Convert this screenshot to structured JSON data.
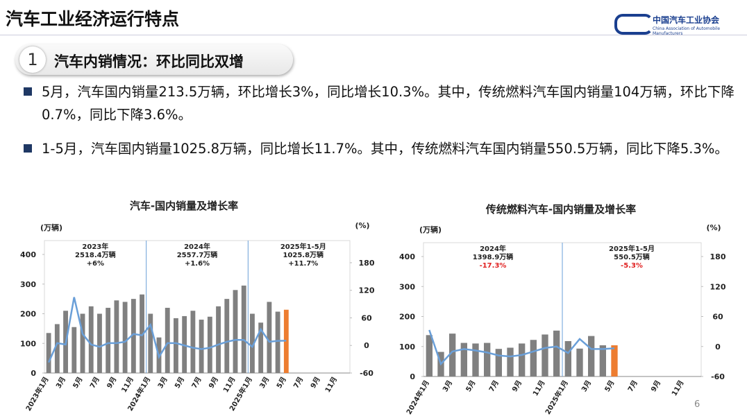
{
  "header": {
    "title": "汽车工业经济运行特点",
    "logo": "中国汽车工业协会",
    "logo_en": "China Association of Automobile Manufacturers"
  },
  "section": {
    "number": "1",
    "title": "汽车内销情况：环比同比双增"
  },
  "bullets": [
    "5月，汽车国内销量213.5万辆，环比增长3%，同比增长10.3%。其中，传统燃料汽车国内销量104万辆，环比下降0.7%，同比下降3.6%。",
    "1-5月，汽车国内销量1025.8万辆，同比增长11.7%。其中，传统燃料汽车国内销量550.5万辆，同比下降5.3%。"
  ],
  "page_number": "6",
  "chart_data": [
    {
      "type": "bar-line",
      "title": "汽车-国内销量及增长率",
      "y_label": "(万辆)",
      "y2_label": "(%)",
      "categories": [
        "2023年1月",
        null,
        "3月",
        null,
        "5月",
        null,
        "7月",
        null,
        "9月",
        null,
        "11月",
        null,
        "2024年1月",
        null,
        "3月",
        null,
        "5月",
        null,
        "7月",
        null,
        "9月",
        null,
        "11月",
        null,
        "2025年1月",
        null,
        "3月",
        null,
        "5月",
        null,
        "7月",
        null,
        "9月",
        null,
        "11月",
        null
      ],
      "series": [
        {
          "type": "bar",
          "color": "#808080",
          "last_color": "#ed7d31",
          "values": [
            135,
            165,
            210,
            155,
            200,
            225,
            200,
            220,
            245,
            240,
            250,
            265,
            200,
            120,
            220,
            185,
            192,
            210,
            180,
            190,
            225,
            250,
            280,
            295,
            200,
            170,
            240,
            207,
            213.5,
            null,
            null,
            null,
            null,
            null,
            null,
            null
          ]
        },
        {
          "type": "line",
          "axis": "y2",
          "color": "#6a9fd8",
          "values": [
            -37,
            5,
            2,
            105,
            25,
            2,
            -3,
            5,
            5,
            8,
            25,
            22,
            45,
            -25,
            5,
            5,
            0,
            -5,
            -8,
            -5,
            2,
            8,
            12,
            12,
            -3,
            35,
            8,
            10,
            10.3,
            null,
            null,
            null,
            null,
            null,
            null,
            null
          ]
        }
      ],
      "ylim": [
        0,
        400
      ],
      "yticks": [
        0,
        100,
        200,
        300,
        400
      ],
      "y2lim": [
        -60,
        198
      ],
      "y2ticks": [
        -60,
        0,
        60,
        120,
        180
      ],
      "annotations": [
        {
          "lines": [
            "2023年",
            "2518.4万辆",
            "+6%"
          ]
        },
        {
          "lines": [
            "2024年",
            "2557.7万辆",
            "+1.6%"
          ]
        },
        {
          "lines": [
            "2025年1-5月",
            "1025.8万辆",
            "+11.7%"
          ]
        }
      ]
    },
    {
      "type": "bar-line",
      "title": "传统燃料汽车-国内销量及增长率",
      "y_label": "(万辆)",
      "y2_label": "(%)",
      "categories": [
        "2024年1月",
        null,
        "3月",
        null,
        "5月",
        null,
        "7月",
        null,
        "9月",
        null,
        "11月",
        null,
        "2025年1月",
        null,
        "3月",
        null,
        "5月",
        null,
        "7月",
        null,
        "9月",
        null,
        "11月",
        null
      ],
      "series": [
        {
          "type": "bar",
          "color": "#808080",
          "last_color": "#ed7d31",
          "values": [
            138,
            82,
            143,
            112,
            110,
            112,
            92,
            96,
            110,
            122,
            140,
            153,
            118,
            93,
            135,
            104,
            104,
            null,
            null,
            null,
            null,
            null,
            null,
            null
          ]
        },
        {
          "type": "line",
          "axis": "y2",
          "color": "#6a9fd8",
          "values": [
            33,
            -35,
            -10,
            -5,
            -8,
            -12,
            -18,
            -20,
            -17,
            -10,
            -3,
            0,
            -13,
            15,
            -5,
            -5,
            -3.6,
            null,
            null,
            null,
            null,
            null,
            null,
            null
          ]
        }
      ],
      "ylim": [
        0,
        400
      ],
      "yticks": [
        0,
        100,
        200,
        300,
        400
      ],
      "y2lim": [
        -60,
        180
      ],
      "y2ticks": [
        -60,
        0,
        60,
        120,
        180
      ],
      "annotations": [
        {
          "lines": [
            "2024年",
            "1398.9万辆",
            "-17.3%"
          ],
          "accent": "#e02020"
        },
        {
          "lines": [
            "2025年1-5月",
            "550.5万辆",
            "-5.3%"
          ],
          "accent": "#e02020"
        }
      ]
    }
  ]
}
